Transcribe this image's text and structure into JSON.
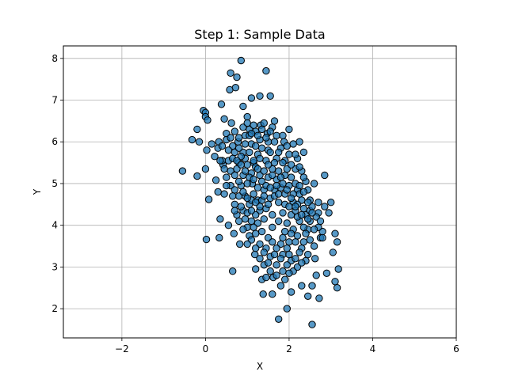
{
  "chart_data": {
    "type": "scatter",
    "title": "Step 1: Sample Data",
    "xlabel": "X",
    "ylabel": "Y",
    "xlim": [
      -3.4,
      6.0
    ],
    "ylim": [
      1.3,
      8.3
    ],
    "xticks": [
      -2,
      0,
      2,
      4,
      6
    ],
    "xtick_labels": [
      "−2",
      "0",
      "2",
      "4",
      "6"
    ],
    "yticks": [
      2,
      3,
      4,
      5,
      6,
      7,
      8
    ],
    "ytick_labels": [
      "2",
      "3",
      "4",
      "5",
      "6",
      "7",
      "8"
    ],
    "grid": true,
    "legend": false,
    "colors": {
      "marker_fill": "#1f77b4",
      "marker_edge": "#000000",
      "grid": "#b0b0b0"
    },
    "series": [
      {
        "points": [
          [
            -0.55,
            5.3
          ],
          [
            -0.32,
            6.05
          ],
          [
            -0.2,
            5.18
          ],
          [
            -0.2,
            6.3
          ],
          [
            -0.15,
            6.0
          ],
          [
            -0.05,
            6.75
          ],
          [
            0.0,
            6.7
          ],
          [
            0.0,
            6.6
          ],
          [
            0.03,
            5.8
          ],
          [
            0.0,
            5.35
          ],
          [
            0.05,
            6.52
          ],
          [
            0.02,
            3.66
          ],
          [
            0.08,
            4.62
          ],
          [
            0.15,
            5.95
          ],
          [
            0.22,
            5.65
          ],
          [
            0.25,
            5.08
          ],
          [
            0.3,
            4.8
          ],
          [
            0.32,
            6.0
          ],
          [
            0.35,
            4.15
          ],
          [
            0.33,
            3.7
          ],
          [
            0.38,
            6.9
          ],
          [
            0.42,
            5.45
          ],
          [
            0.45,
            6.55
          ],
          [
            0.5,
            6.2
          ],
          [
            0.55,
            4.0
          ],
          [
            0.6,
            7.65
          ],
          [
            0.58,
            7.25
          ],
          [
            0.62,
            6.45
          ],
          [
            0.65,
            2.9
          ],
          [
            0.68,
            3.8
          ],
          [
            0.7,
            4.5
          ],
          [
            0.72,
            7.3
          ],
          [
            0.75,
            7.55
          ],
          [
            0.78,
            6.0
          ],
          [
            0.8,
            5.5
          ],
          [
            0.82,
            3.55
          ],
          [
            0.85,
            7.95
          ],
          [
            0.9,
            6.85
          ],
          [
            0.95,
            6.15
          ],
          [
            1.0,
            6.6
          ],
          [
            1.05,
            6.3
          ],
          [
            1.1,
            7.05
          ],
          [
            1.12,
            5.0
          ],
          [
            1.15,
            5.5
          ],
          [
            1.18,
            3.3
          ],
          [
            1.2,
            2.95
          ],
          [
            1.25,
            4.6
          ],
          [
            1.3,
            7.1
          ],
          [
            1.32,
            6.4
          ],
          [
            1.35,
            2.7
          ],
          [
            1.38,
            2.35
          ],
          [
            1.45,
            7.7
          ],
          [
            1.48,
            6.2
          ],
          [
            1.5,
            5.8
          ],
          [
            1.55,
            7.1
          ],
          [
            1.6,
            2.35
          ],
          [
            1.62,
            2.75
          ],
          [
            1.65,
            6.5
          ],
          [
            1.7,
            5.6
          ],
          [
            1.75,
            1.75
          ],
          [
            1.8,
            2.55
          ],
          [
            1.85,
            3.3
          ],
          [
            1.88,
            6.0
          ],
          [
            1.9,
            4.5
          ],
          [
            1.95,
            2.0
          ],
          [
            2.0,
            6.3
          ],
          [
            2.05,
            2.4
          ],
          [
            2.1,
            2.9
          ],
          [
            2.15,
            5.35
          ],
          [
            2.2,
            3.0
          ],
          [
            2.25,
            6.0
          ],
          [
            2.3,
            2.55
          ],
          [
            2.35,
            5.75
          ],
          [
            2.4,
            4.25
          ],
          [
            2.45,
            2.3
          ],
          [
            2.5,
            4.1
          ],
          [
            2.55,
            1.62
          ],
          [
            2.55,
            2.55
          ],
          [
            2.6,
            5.0
          ],
          [
            2.62,
            3.2
          ],
          [
            2.65,
            2.8
          ],
          [
            2.7,
            4.3
          ],
          [
            2.72,
            2.25
          ],
          [
            2.75,
            3.7
          ],
          [
            2.8,
            3.85
          ],
          [
            2.85,
            5.2
          ],
          [
            2.9,
            2.85
          ],
          [
            2.95,
            4.3
          ],
          [
            3.0,
            4.55
          ],
          [
            3.05,
            3.35
          ],
          [
            3.1,
            3.8
          ],
          [
            3.1,
            2.65
          ],
          [
            3.15,
            3.6
          ],
          [
            3.18,
            2.95
          ],
          [
            3.15,
            2.5
          ],
          [
            2.85,
            4.45
          ],
          [
            2.5,
            4.6
          ],
          [
            2.7,
            3.95
          ],
          [
            2.3,
            3.45
          ],
          [
            2.45,
            3.9
          ],
          [
            2.4,
            3.15
          ],
          [
            2.2,
            3.75
          ],
          [
            2.0,
            3.3
          ],
          [
            1.8,
            3.55
          ],
          [
            1.7,
            3.05
          ],
          [
            1.55,
            3.25
          ],
          [
            1.4,
            3.05
          ],
          [
            1.3,
            3.55
          ],
          [
            1.2,
            3.8
          ],
          [
            1.1,
            4.1
          ],
          [
            1.0,
            3.95
          ],
          [
            0.9,
            4.35
          ],
          [
            0.8,
            4.7
          ],
          [
            0.75,
            4.25
          ],
          [
            0.6,
            4.95
          ],
          [
            0.5,
            5.15
          ],
          [
            0.4,
            5.55
          ],
          [
            0.3,
            5.85
          ],
          [
            0.45,
            4.75
          ],
          [
            0.55,
            5.55
          ],
          [
            0.65,
            5.9
          ],
          [
            0.7,
            6.25
          ],
          [
            0.8,
            6.1
          ],
          [
            0.9,
            5.75
          ],
          [
            1.0,
            5.45
          ],
          [
            1.1,
            5.95
          ],
          [
            1.2,
            6.25
          ],
          [
            1.3,
            6.05
          ],
          [
            1.4,
            6.45
          ],
          [
            1.5,
            6.0
          ],
          [
            1.6,
            6.35
          ],
          [
            1.7,
            6.15
          ],
          [
            1.8,
            5.85
          ],
          [
            1.9,
            5.55
          ],
          [
            2.0,
            5.7
          ],
          [
            2.1,
            5.95
          ],
          [
            2.2,
            5.6
          ],
          [
            2.3,
            5.3
          ],
          [
            2.4,
            5.05
          ],
          [
            2.2,
            4.85
          ],
          [
            2.1,
            4.55
          ],
          [
            2.3,
            4.6
          ],
          [
            2.0,
            4.95
          ],
          [
            1.9,
            5.2
          ],
          [
            1.8,
            4.9
          ],
          [
            1.7,
            5.1
          ],
          [
            1.6,
            5.35
          ],
          [
            1.5,
            5.15
          ],
          [
            1.4,
            4.85
          ],
          [
            1.3,
            5.2
          ],
          [
            1.2,
            5.4
          ],
          [
            1.1,
            5.25
          ],
          [
            1.0,
            5.0
          ],
          [
            0.9,
            5.2
          ],
          [
            0.85,
            4.95
          ],
          [
            0.95,
            4.7
          ],
          [
            1.05,
            4.5
          ],
          [
            1.15,
            4.75
          ],
          [
            1.25,
            4.9
          ],
          [
            1.35,
            4.6
          ],
          [
            1.45,
            4.4
          ],
          [
            1.55,
            4.65
          ],
          [
            1.65,
            4.85
          ],
          [
            1.75,
            4.55
          ],
          [
            1.85,
            4.3
          ],
          [
            1.95,
            4.05
          ],
          [
            2.05,
            4.25
          ],
          [
            1.9,
            3.85
          ],
          [
            1.75,
            4.1
          ],
          [
            1.6,
            3.95
          ],
          [
            1.5,
            3.7
          ],
          [
            1.4,
            4.15
          ],
          [
            1.3,
            4.35
          ],
          [
            1.2,
            4.25
          ],
          [
            1.1,
            4.6
          ],
          [
            1.0,
            4.3
          ],
          [
            0.95,
            5.6
          ],
          [
            1.05,
            5.75
          ],
          [
            1.15,
            5.55
          ],
          [
            1.25,
            5.7
          ],
          [
            1.35,
            5.85
          ],
          [
            1.45,
            5.55
          ],
          [
            1.55,
            5.75
          ],
          [
            1.65,
            5.5
          ],
          [
            1.75,
            5.3
          ],
          [
            1.85,
            5.5
          ],
          [
            1.95,
            5.35
          ],
          [
            2.05,
            5.15
          ],
          [
            2.15,
            5.0
          ],
          [
            2.25,
            4.75
          ],
          [
            2.35,
            4.4
          ],
          [
            2.15,
            4.35
          ],
          [
            2.25,
            4.1
          ],
          [
            2.1,
            3.9
          ],
          [
            2.0,
            3.6
          ],
          [
            1.85,
            3.7
          ],
          [
            1.7,
            3.45
          ],
          [
            1.6,
            3.6
          ],
          [
            1.45,
            3.45
          ],
          [
            1.35,
            3.85
          ],
          [
            1.25,
            4.05
          ],
          [
            1.15,
            3.95
          ],
          [
            1.05,
            3.75
          ],
          [
            0.95,
            4.15
          ],
          [
            0.85,
            4.45
          ],
          [
            0.7,
            4.85
          ],
          [
            0.6,
            5.3
          ],
          [
            0.55,
            5.8
          ],
          [
            0.65,
            5.6
          ],
          [
            0.75,
            5.35
          ],
          [
            0.85,
            5.65
          ],
          [
            0.95,
            5.95
          ],
          [
            1.05,
            6.15
          ],
          [
            1.15,
            6.4
          ],
          [
            1.25,
            6.15
          ],
          [
            1.35,
            6.3
          ],
          [
            1.45,
            6.1
          ],
          [
            1.55,
            6.25
          ],
          [
            1.65,
            6.0
          ],
          [
            1.75,
            5.75
          ],
          [
            1.85,
            6.15
          ],
          [
            1.95,
            5.9
          ],
          [
            2.05,
            5.45
          ],
          [
            2.15,
            5.7
          ],
          [
            2.25,
            5.4
          ],
          [
            2.35,
            5.15
          ],
          [
            2.45,
            4.85
          ],
          [
            2.5,
            4.35
          ],
          [
            2.35,
            3.95
          ],
          [
            2.2,
            4.2
          ],
          [
            2.05,
            3.8
          ],
          [
            1.95,
            3.45
          ],
          [
            1.8,
            3.2
          ],
          [
            1.65,
            3.3
          ],
          [
            1.5,
            3.1
          ],
          [
            1.4,
            3.35
          ],
          [
            1.3,
            3.2
          ],
          [
            1.2,
            3.45
          ],
          [
            1.1,
            3.65
          ],
          [
            1.0,
            3.55
          ],
          [
            0.9,
            3.9
          ],
          [
            0.8,
            4.1
          ],
          [
            0.7,
            4.35
          ],
          [
            0.65,
            4.7
          ],
          [
            0.5,
            4.95
          ],
          [
            0.45,
            5.35
          ],
          [
            0.35,
            5.55
          ],
          [
            0.4,
            5.9
          ],
          [
            0.5,
            6.05
          ],
          [
            0.6,
            6.1
          ],
          [
            0.7,
            5.75
          ],
          [
            0.8,
            5.85
          ],
          [
            0.9,
            6.35
          ],
          [
            1.0,
            6.45
          ],
          [
            1.1,
            6.2
          ],
          [
            1.2,
            5.9
          ],
          [
            1.3,
            5.6
          ],
          [
            1.4,
            5.3
          ],
          [
            1.5,
            5.45
          ],
          [
            1.6,
            5.2
          ],
          [
            1.7,
            4.95
          ],
          [
            1.8,
            5.15
          ],
          [
            1.9,
            4.75
          ],
          [
            2.0,
            4.45
          ],
          [
            2.1,
            4.75
          ],
          [
            2.2,
            4.5
          ],
          [
            2.3,
            4.25
          ],
          [
            2.4,
            3.8
          ],
          [
            2.5,
            3.65
          ],
          [
            2.6,
            3.9
          ],
          [
            2.65,
            4.2
          ],
          [
            2.55,
            4.45
          ],
          [
            2.45,
            4.15
          ],
          [
            2.35,
            3.6
          ],
          [
            2.25,
            3.35
          ],
          [
            2.15,
            3.6
          ],
          [
            2.05,
            3.15
          ],
          [
            1.95,
            3.05
          ],
          [
            1.85,
            2.9
          ],
          [
            1.7,
            2.8
          ],
          [
            1.55,
            2.9
          ],
          [
            1.45,
            2.75
          ],
          [
            1.6,
            4.25
          ],
          [
            1.5,
            4.5
          ],
          [
            1.4,
            4.7
          ],
          [
            1.3,
            4.45
          ],
          [
            1.2,
            4.55
          ],
          [
            1.1,
            4.35
          ],
          [
            1.0,
            4.65
          ],
          [
            0.9,
            4.8
          ],
          [
            0.8,
            5.05
          ],
          [
            0.7,
            5.2
          ],
          [
            0.75,
            5.55
          ],
          [
            0.85,
            5.45
          ],
          [
            0.95,
            5.3
          ],
          [
            1.05,
            5.15
          ],
          [
            1.15,
            5.1
          ],
          [
            1.25,
            5.35
          ],
          [
            1.35,
            5.05
          ],
          [
            1.45,
            4.95
          ],
          [
            1.55,
            4.9
          ],
          [
            1.65,
            4.7
          ],
          [
            1.75,
            4.75
          ],
          [
            1.85,
            5.0
          ],
          [
            1.95,
            4.85
          ],
          [
            2.05,
            4.65
          ],
          [
            2.15,
            4.45
          ],
          [
            2.25,
            4.95
          ],
          [
            2.35,
            4.8
          ],
          [
            2.45,
            4.55
          ],
          [
            2.55,
            4.3
          ],
          [
            2.7,
            4.55
          ],
          [
            2.75,
            4.1
          ],
          [
            2.8,
            3.7
          ],
          [
            2.6,
            3.5
          ],
          [
            2.45,
            3.3
          ],
          [
            2.3,
            3.1
          ],
          [
            2.15,
            3.2
          ],
          [
            2.0,
            2.85
          ],
          [
            1.9,
            2.7
          ]
        ]
      }
    ]
  }
}
